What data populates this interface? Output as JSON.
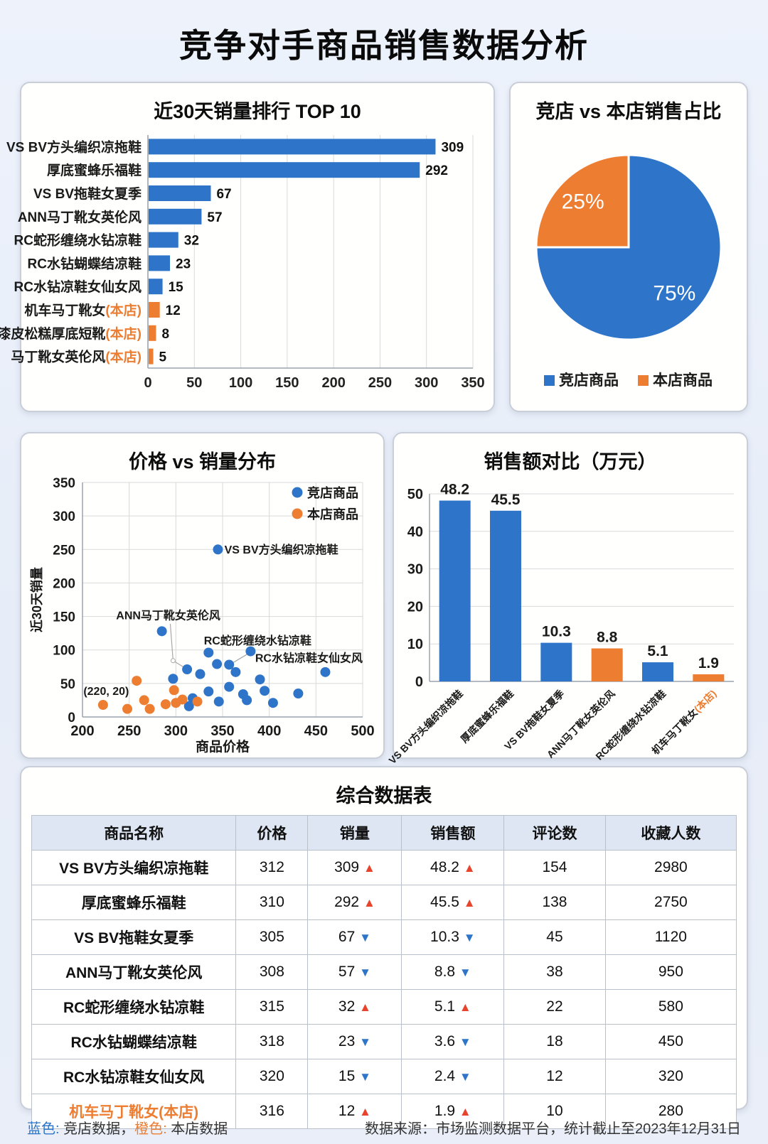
{
  "page_title": "竞争对手商品销售数据分析",
  "colors": {
    "blue": "#2E75C9",
    "orange": "#ED7D31",
    "up": "#E8432C",
    "down": "#2E75C9"
  },
  "footer": {
    "blue_label": "蓝色:",
    "blue_text": " 竞店数据，",
    "orange_label": "橙色:",
    "orange_text": " 本店数据",
    "source": "数据来源：市场监测数据平台，统计截止至2023年12月31日"
  },
  "chart_data": [
    {
      "id": "ranking",
      "type": "bar",
      "orientation": "horizontal",
      "title": "近30天销量排行 TOP 10",
      "xlim": [
        0,
        350
      ],
      "xticks": [
        0,
        50,
        100,
        150,
        200,
        250,
        300,
        350
      ],
      "grid": true,
      "categories": [
        {
          "name": "VS BV方头编织凉拖鞋",
          "suffix": "",
          "value": 309,
          "color": "blue"
        },
        {
          "name": "厚底蜜蜂乐福鞋",
          "suffix": "",
          "value": 292,
          "color": "blue"
        },
        {
          "name": "VS BV拖鞋女夏季",
          "suffix": "",
          "value": 67,
          "color": "blue"
        },
        {
          "name": "ANN马丁靴女英伦风",
          "suffix": "",
          "value": 57,
          "color": "blue"
        },
        {
          "name": "RC蛇形缠绕水钻凉鞋",
          "suffix": "",
          "value": 32,
          "color": "blue"
        },
        {
          "name": "RC水钻蝴蝶结凉鞋",
          "suffix": "",
          "value": 23,
          "color": "blue"
        },
        {
          "name": "RC水钻凉鞋女仙女风",
          "suffix": "",
          "value": 15,
          "color": "blue"
        },
        {
          "name": "机车马丁靴女",
          "suffix": "(本店)",
          "value": 12,
          "color": "orange"
        },
        {
          "name": "漆皮松糕厚底短靴",
          "suffix": "(本店)",
          "value": 8,
          "color": "orange"
        },
        {
          "name": "马丁靴女英伦风",
          "suffix": "(本店)",
          "value": 5,
          "color": "orange"
        }
      ]
    },
    {
      "id": "pie",
      "type": "pie",
      "title": "竞店 vs 本店销售占比",
      "slices": [
        {
          "label": "竞店商品",
          "value": 75,
          "pct_label": "75%",
          "color": "blue"
        },
        {
          "label": "本店商品",
          "value": 25,
          "pct_label": "25%",
          "color": "orange"
        }
      ],
      "legend_position": "bottom"
    },
    {
      "id": "scatter",
      "type": "scatter",
      "title": "价格 vs 销量分布",
      "xlabel": "商品价格",
      "ylabel": "近30天销量",
      "xlim": [
        200,
        500
      ],
      "ylim": [
        0,
        350
      ],
      "xticks": [
        200,
        250,
        300,
        350,
        400,
        450,
        500
      ],
      "yticks": [
        0,
        50,
        100,
        150,
        200,
        250,
        300,
        350
      ],
      "grid": true,
      "legend_position": "top-right",
      "series": [
        {
          "name": "竞店商品",
          "color": "blue",
          "points": [
            [
              285,
              128
            ],
            [
              312,
              71
            ],
            [
              345,
              250
            ],
            [
              335,
              96
            ],
            [
              344,
              79
            ],
            [
              357,
              78
            ],
            [
              380,
              98
            ],
            [
              326,
              64
            ],
            [
              297,
              57
            ],
            [
              364,
              67
            ],
            [
              390,
              56
            ],
            [
              357,
              45
            ],
            [
              395,
              39
            ],
            [
              372,
              34
            ],
            [
              335,
              38
            ],
            [
              346,
              23
            ],
            [
              376,
              25
            ],
            [
              404,
              21
            ],
            [
              431,
              35
            ],
            [
              460,
              67
            ],
            [
              314,
              16
            ],
            [
              318,
              28
            ]
          ]
        },
        {
          "name": "本店商品",
          "color": "orange",
          "points": [
            [
              222,
              18
            ],
            [
              248,
              12
            ],
            [
              258,
              54
            ],
            [
              266,
              25
            ],
            [
              272,
              12
            ],
            [
              289,
              19
            ],
            [
              298,
              40
            ],
            [
              300,
              21
            ],
            [
              307,
              26
            ],
            [
              323,
              23
            ]
          ]
        }
      ],
      "annotations": [
        {
          "text": "VS BV方头编织凉拖鞋",
          "x": 352,
          "y": 244,
          "anchor": "start"
        },
        {
          "text": "ANN马丁靴女英伦风",
          "x": 236,
          "y": 146,
          "anchor": "start",
          "line": [
            [
              294,
              139
            ],
            [
              297,
              84
            ],
            [
              310,
              73
            ]
          ],
          "elbow": [
            297,
            84
          ]
        },
        {
          "text": "RC蛇形缠绕水钻凉鞋",
          "x": 330,
          "y": 108,
          "anchor": "start",
          "line": [
            [
              378,
              95
            ],
            [
              360,
              80
            ]
          ]
        },
        {
          "text": "RC水钻凉鞋女仙女风",
          "x": 500,
          "y": 82,
          "anchor": "end"
        },
        {
          "text": "(220, 20)",
          "x": 201,
          "y": 33,
          "anchor": "start"
        }
      ]
    },
    {
      "id": "sales",
      "type": "bar",
      "orientation": "vertical",
      "title": "销售额对比（万元）",
      "ylim": [
        0,
        50
      ],
      "yticks": [
        0,
        10,
        20,
        30,
        40,
        50
      ],
      "grid": true,
      "categories": [
        {
          "name": "VS BV方头编织凉拖鞋",
          "suffix": "",
          "value": 48.2,
          "color": "blue"
        },
        {
          "name": "厚底蜜蜂乐福鞋",
          "suffix": "",
          "value": 45.5,
          "color": "blue"
        },
        {
          "name": "VS BV拖鞋女夏季",
          "suffix": "",
          "value": 10.3,
          "color": "blue"
        },
        {
          "name": "ANN马丁靴女英伦风",
          "suffix": "",
          "value": 8.8,
          "color": "orange"
        },
        {
          "name": "RC蛇形缠绕水钻凉鞋",
          "suffix": "",
          "value": 5.1,
          "color": "blue"
        },
        {
          "name": "机车马丁靴女",
          "suffix": "(本店)",
          "value": 1.9,
          "color": "orange"
        }
      ]
    },
    {
      "id": "table",
      "type": "table",
      "title": "综合数据表",
      "headers": [
        "商品名称",
        "价格",
        "销量",
        "销售额",
        "评论数",
        "收藏人数"
      ],
      "rows": [
        {
          "name": "VS BV方头编织凉拖鞋",
          "own": false,
          "price": "312",
          "sales": "309",
          "sales_dir": "up",
          "revenue": "48.2",
          "revenue_dir": "up",
          "comments": "154",
          "favorites": "2980"
        },
        {
          "name": "厚底蜜蜂乐福鞋",
          "own": false,
          "price": "310",
          "sales": "292",
          "sales_dir": "up",
          "revenue": "45.5",
          "revenue_dir": "up",
          "comments": "138",
          "favorites": "2750"
        },
        {
          "name": "VS BV拖鞋女夏季",
          "own": false,
          "price": "305",
          "sales": "67",
          "sales_dir": "down",
          "revenue": "10.3",
          "revenue_dir": "down",
          "comments": "45",
          "favorites": "1120"
        },
        {
          "name": "ANN马丁靴女英伦风",
          "own": false,
          "price": "308",
          "sales": "57",
          "sales_dir": "down",
          "revenue": "8.8",
          "revenue_dir": "down",
          "comments": "38",
          "favorites": "950"
        },
        {
          "name": "RC蛇形缠绕水钻凉鞋",
          "own": false,
          "price": "315",
          "sales": "32",
          "sales_dir": "up",
          "revenue": "5.1",
          "revenue_dir": "up",
          "comments": "22",
          "favorites": "580"
        },
        {
          "name": "RC水钻蝴蝶结凉鞋",
          "own": false,
          "price": "318",
          "sales": "23",
          "sales_dir": "down",
          "revenue": "3.6",
          "revenue_dir": "down",
          "comments": "18",
          "favorites": "450"
        },
        {
          "name": "RC水钻凉鞋女仙女风",
          "own": false,
          "price": "320",
          "sales": "15",
          "sales_dir": "down",
          "revenue": "2.4",
          "revenue_dir": "down",
          "comments": "12",
          "favorites": "320"
        },
        {
          "name": "机车马丁靴女(本店)",
          "own": true,
          "price": "316",
          "sales": "12",
          "sales_dir": "up",
          "revenue": "1.9",
          "revenue_dir": "up",
          "comments": "10",
          "favorites": "280"
        }
      ]
    }
  ]
}
